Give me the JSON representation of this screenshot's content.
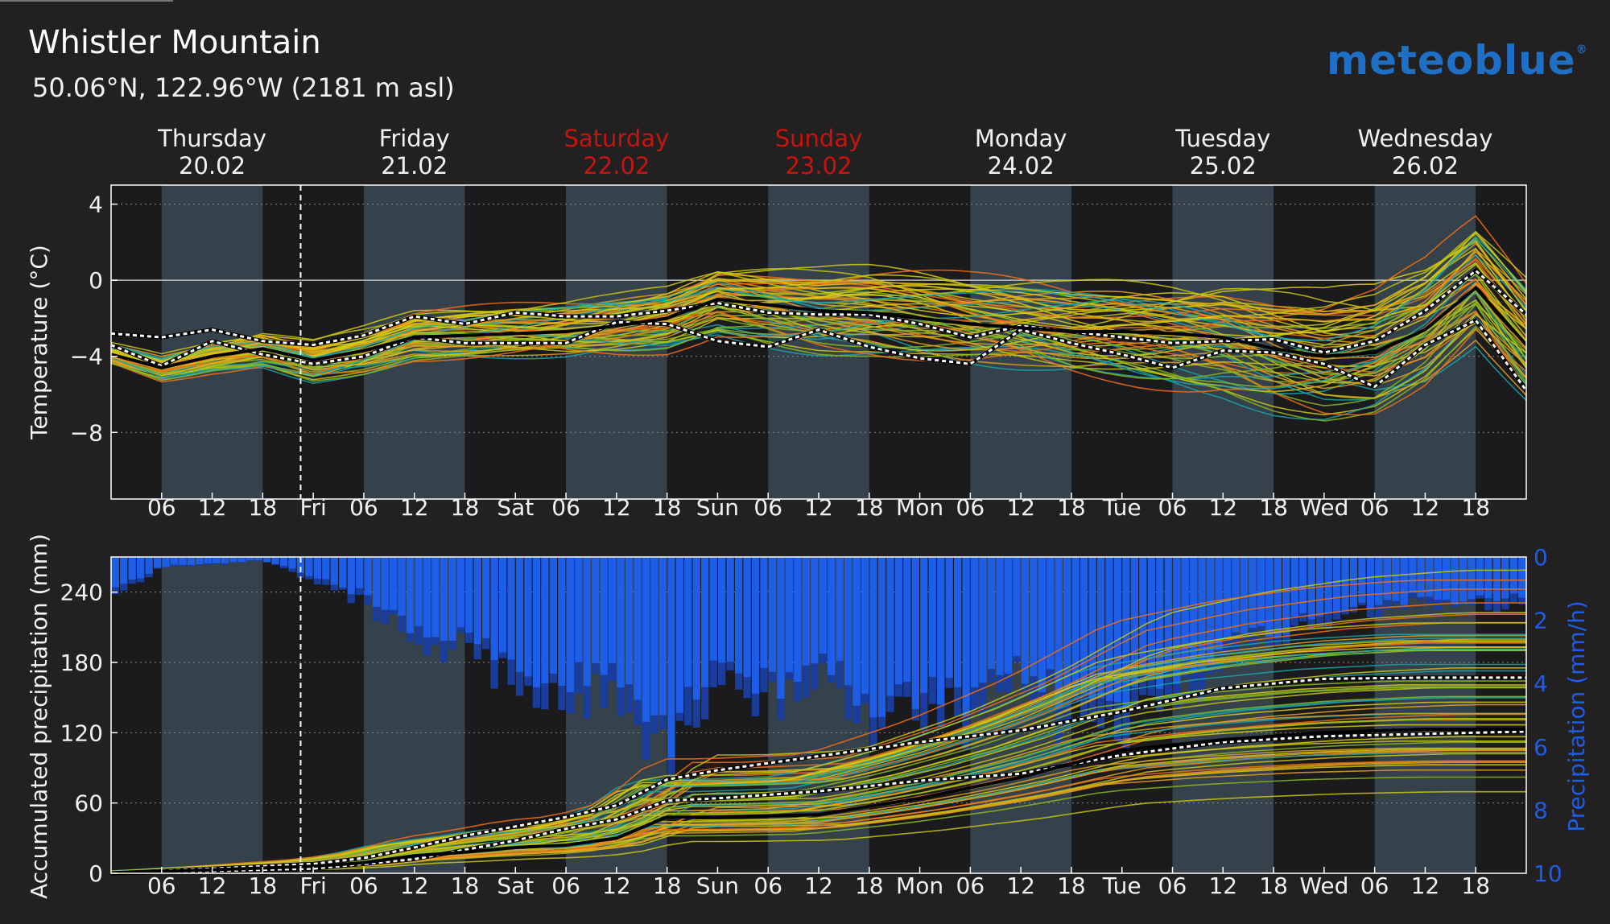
{
  "header": {
    "title": "Whistler Mountain",
    "subtitle": "50.06°N, 122.96°W (2181 m asl)",
    "logo_text": "meteoblue"
  },
  "days": [
    {
      "name": "Thursday",
      "date": "20.02",
      "weekend": false
    },
    {
      "name": "Friday",
      "date": "21.02",
      "weekend": false
    },
    {
      "name": "Saturday",
      "date": "22.02",
      "weekend": true
    },
    {
      "name": "Sunday",
      "date": "23.02",
      "weekend": true
    },
    {
      "name": "Monday",
      "date": "24.02",
      "weekend": false
    },
    {
      "name": "Tuesday",
      "date": "25.02",
      "weekend": false
    },
    {
      "name": "Wednesday",
      "date": "26.02",
      "weekend": false
    }
  ],
  "x_tick_labels": [
    "06",
    "12",
    "18",
    "Fri",
    "06",
    "12",
    "18",
    "Sat",
    "06",
    "12",
    "18",
    "Sun",
    "06",
    "12",
    "18",
    "Mon",
    "06",
    "12",
    "18",
    "Tue",
    "06",
    "12",
    "18",
    "Wed",
    "06",
    "12",
    "18"
  ],
  "colors": {
    "background": "#232022",
    "night_band": "#1b1a1c",
    "day_band": "#35414b",
    "ensemble_orange": "#f07018",
    "ensemble_yellow": "#d8cc10",
    "ensemble_teal": "#1aa3a8",
    "median": "#000000",
    "quantile": "#ffffff",
    "precip_bars": "#1e5de6",
    "weekend_text": "#c8140f"
  },
  "chart_data": [
    {
      "type": "line",
      "title": "",
      "ylabel": "Temperature (°C)",
      "ylim": [
        -11.5,
        5
      ],
      "yticks": [
        4,
        0,
        -4,
        -8
      ],
      "ytick_labels": [
        "4",
        "0",
        "−4",
        "−8"
      ],
      "x_unit": "hours from Thursday 00:00",
      "xlim": [
        0,
        168
      ],
      "now_marker_hour": 22.5,
      "grid": true,
      "series": [
        {
          "role": "median",
          "x": [
            0,
            6,
            12,
            18,
            24,
            30,
            36,
            42,
            48,
            54,
            60,
            66,
            72,
            78,
            84,
            90,
            96,
            102,
            108,
            114,
            120,
            126,
            132,
            138,
            144,
            150,
            156,
            162,
            168
          ],
          "values": [
            -3.9,
            -4.6,
            -4.0,
            -3.6,
            -4.2,
            -3.7,
            -3.0,
            -2.9,
            -2.8,
            -2.7,
            -2.4,
            -2.0,
            -1.0,
            -1.3,
            -1.6,
            -1.7,
            -2.0,
            -2.3,
            -2.5,
            -2.7,
            -2.7,
            -2.8,
            -3.0,
            -3.6,
            -4.0,
            -3.8,
            -2.6,
            -0.4,
            -3.4
          ]
        },
        {
          "role": "upper-quantile",
          "x": [
            0,
            6,
            12,
            18,
            24,
            30,
            36,
            42,
            48,
            54,
            60,
            66,
            72,
            78,
            84,
            90,
            96,
            102,
            108,
            114,
            120,
            126,
            132,
            138,
            144,
            150,
            156,
            162,
            168
          ],
          "values": [
            -2.8,
            -3.0,
            -2.6,
            -3.2,
            -3.4,
            -2.9,
            -1.9,
            -2.3,
            -1.7,
            -1.9,
            -1.9,
            -1.6,
            -1.2,
            -1.7,
            -1.8,
            -1.8,
            -2.3,
            -3.0,
            -2.4,
            -2.7,
            -3.0,
            -3.3,
            -3.2,
            -3.1,
            -3.8,
            -3.2,
            -1.6,
            0.5,
            -1.8
          ]
        },
        {
          "role": "lower-quantile",
          "x": [
            0,
            6,
            12,
            18,
            24,
            30,
            36,
            42,
            48,
            54,
            60,
            66,
            72,
            78,
            84,
            90,
            96,
            102,
            108,
            114,
            120,
            126,
            132,
            138,
            144,
            150,
            156,
            162,
            168
          ],
          "values": [
            -3.4,
            -4.5,
            -3.2,
            -3.9,
            -4.4,
            -4.0,
            -3.0,
            -3.3,
            -3.3,
            -3.3,
            -2.2,
            -2.3,
            -3.2,
            -3.5,
            -2.6,
            -3.5,
            -4.1,
            -4.4,
            -2.6,
            -3.3,
            -3.9,
            -4.6,
            -3.7,
            -3.8,
            -4.4,
            -5.6,
            -3.4,
            -2.1,
            -5.8
          ]
        }
      ]
    },
    {
      "type": "line",
      "title": "",
      "ylabel": "Accumulated precipitation (mm)",
      "ylabel_right": "Precipitation (mm/h)",
      "ylim": [
        0,
        270
      ],
      "yticks": [
        0,
        60,
        120,
        180,
        240
      ],
      "ylim_right": [
        10,
        0
      ],
      "yticks_right": [
        0,
        2,
        4,
        6,
        8,
        10
      ],
      "x_unit": "hours from Thursday 00:00",
      "xlim": [
        0,
        168
      ],
      "now_marker_hour": 22.5,
      "series": [
        {
          "role": "median",
          "x": [
            0,
            12,
            24,
            30,
            36,
            42,
            48,
            54,
            60,
            66,
            72,
            84,
            96,
            108,
            120,
            132,
            144,
            156,
            168
          ],
          "values": [
            0,
            3,
            6,
            9,
            15,
            18,
            22,
            24,
            30,
            48,
            48,
            50,
            64,
            82,
            105,
            114,
            120,
            123,
            123
          ]
        },
        {
          "role": "upper-quantile",
          "x": [
            0,
            12,
            24,
            30,
            36,
            42,
            48,
            54,
            60,
            66,
            72,
            84,
            96,
            108,
            120,
            132,
            144,
            156,
            168
          ],
          "values": [
            0,
            4,
            8,
            13,
            22,
            32,
            40,
            48,
            58,
            80,
            88,
            100,
            112,
            122,
            138,
            158,
            166,
            167,
            167
          ]
        },
        {
          "role": "lower-quantile",
          "x": [
            0,
            12,
            24,
            30,
            36,
            42,
            48,
            54,
            60,
            66,
            72,
            84,
            96,
            108,
            120,
            132,
            144,
            156,
            168
          ],
          "values": [
            0,
            2,
            4,
            8,
            12,
            20,
            28,
            38,
            46,
            62,
            64,
            70,
            79,
            85,
            101,
            112,
            117,
            119,
            121
          ]
        }
      ],
      "precip_rate_envelope": {
        "x": [
          0,
          6,
          12,
          18,
          24,
          30,
          36,
          42,
          48,
          54,
          60,
          66,
          72,
          78,
          84,
          90,
          96,
          102,
          108,
          114,
          120,
          126,
          132,
          138,
          144,
          150,
          156,
          162,
          168
        ],
        "values": [
          1.1,
          0.3,
          0.2,
          0.1,
          0.6,
          1.2,
          2.3,
          2.5,
          3.6,
          4.0,
          3.4,
          6.0,
          2.8,
          4.2,
          3.0,
          5.0,
          4.3,
          4.6,
          3.5,
          4.5,
          4.5,
          3.6,
          2.8,
          2.3,
          1.7,
          1.4,
          1.3,
          1.4,
          1.3
        ]
      }
    }
  ]
}
